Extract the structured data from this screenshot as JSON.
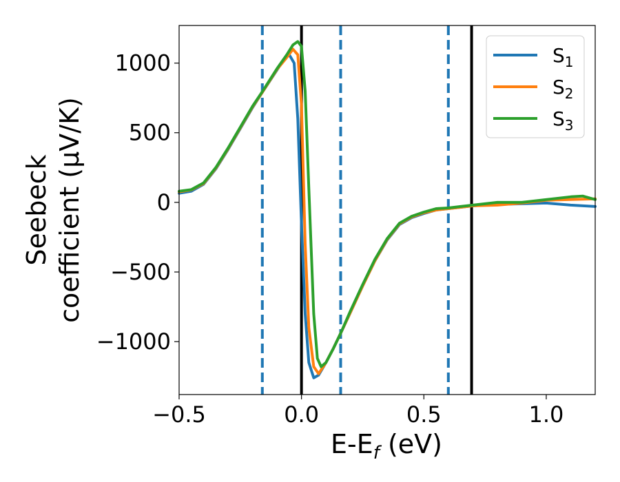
{
  "chart_data": {
    "type": "line",
    "xlabel": "E-E",
    "xlabel_sub": "f",
    "xlabel_unit": " (eV)",
    "ylabel_line1": "Seebeck",
    "ylabel_line2": "coefficient  (μV/K)",
    "xlim": [
      -0.5,
      1.2
    ],
    "ylim": [
      -1380,
      1270
    ],
    "x_ticks": [
      {
        "value": -0.5,
        "label": "−0.5"
      },
      {
        "value": 0.0,
        "label": "0.0"
      },
      {
        "value": 0.5,
        "label": "0.5"
      },
      {
        "value": 1.0,
        "label": "1.0"
      }
    ],
    "y_ticks": [
      {
        "value": 1000,
        "label": "1000"
      },
      {
        "value": 500,
        "label": "500"
      },
      {
        "value": 0,
        "label": "0"
      },
      {
        "value": -500,
        "label": "−500"
      },
      {
        "value": -1000,
        "label": "−1000"
      }
    ],
    "legend_position": "top-right",
    "vlines": [
      {
        "x": -0.16,
        "style": "dashed",
        "color": "#1f77b4"
      },
      {
        "x": 0.0,
        "style": "solid",
        "color": "#000000"
      },
      {
        "x": 0.16,
        "style": "dashed",
        "color": "#1f77b4"
      },
      {
        "x": 0.6,
        "style": "dashed",
        "color": "#1f77b4"
      },
      {
        "x": 0.695,
        "style": "solid",
        "color": "#000000"
      }
    ],
    "series": [
      {
        "name": "S",
        "sub": "1",
        "color": "#1f77b4",
        "points": [
          [
            -0.5,
            65
          ],
          [
            -0.45,
            80
          ],
          [
            -0.4,
            130
          ],
          [
            -0.35,
            240
          ],
          [
            -0.3,
            380
          ],
          [
            -0.25,
            530
          ],
          [
            -0.2,
            680
          ],
          [
            -0.16,
            790
          ],
          [
            -0.1,
            950
          ],
          [
            -0.07,
            1030
          ],
          [
            -0.05,
            1060
          ],
          [
            -0.03,
            1000
          ],
          [
            -0.015,
            600
          ],
          [
            0.0,
            -150
          ],
          [
            0.015,
            -800
          ],
          [
            0.03,
            -1150
          ],
          [
            0.05,
            -1260
          ],
          [
            0.07,
            -1240
          ],
          [
            0.1,
            -1150
          ],
          [
            0.13,
            -1050
          ],
          [
            0.16,
            -940
          ],
          [
            0.2,
            -790
          ],
          [
            0.25,
            -600
          ],
          [
            0.3,
            -420
          ],
          [
            0.35,
            -270
          ],
          [
            0.4,
            -160
          ],
          [
            0.45,
            -110
          ],
          [
            0.5,
            -80
          ],
          [
            0.55,
            -55
          ],
          [
            0.6,
            -45
          ],
          [
            0.65,
            -35
          ],
          [
            0.7,
            -25
          ],
          [
            0.8,
            -15
          ],
          [
            0.9,
            -10
          ],
          [
            1.0,
            -5
          ],
          [
            1.1,
            -20
          ],
          [
            1.2,
            -30
          ]
        ]
      },
      {
        "name": "S",
        "sub": "2",
        "color": "#ff7f0e",
        "points": [
          [
            -0.5,
            75
          ],
          [
            -0.45,
            90
          ],
          [
            -0.4,
            135
          ],
          [
            -0.35,
            245
          ],
          [
            -0.3,
            385
          ],
          [
            -0.25,
            535
          ],
          [
            -0.2,
            685
          ],
          [
            -0.16,
            790
          ],
          [
            -0.1,
            955
          ],
          [
            -0.06,
            1040
          ],
          [
            -0.035,
            1100
          ],
          [
            -0.015,
            1060
          ],
          [
            0.0,
            700
          ],
          [
            0.015,
            -300
          ],
          [
            0.03,
            -900
          ],
          [
            0.05,
            -1180
          ],
          [
            0.07,
            -1230
          ],
          [
            0.1,
            -1150
          ],
          [
            0.13,
            -1050
          ],
          [
            0.16,
            -940
          ],
          [
            0.2,
            -790
          ],
          [
            0.25,
            -600
          ],
          [
            0.3,
            -420
          ],
          [
            0.35,
            -265
          ],
          [
            0.4,
            -155
          ],
          [
            0.45,
            -105
          ],
          [
            0.5,
            -75
          ],
          [
            0.55,
            -55
          ],
          [
            0.6,
            -45
          ],
          [
            0.65,
            -35
          ],
          [
            0.7,
            -25
          ],
          [
            0.8,
            -20
          ],
          [
            0.9,
            -5
          ],
          [
            1.0,
            15
          ],
          [
            1.1,
            20
          ],
          [
            1.2,
            25
          ]
        ]
      },
      {
        "name": "S",
        "sub": "3",
        "color": "#2ca02c",
        "points": [
          [
            -0.5,
            80
          ],
          [
            -0.45,
            92
          ],
          [
            -0.4,
            140
          ],
          [
            -0.35,
            250
          ],
          [
            -0.3,
            390
          ],
          [
            -0.25,
            540
          ],
          [
            -0.2,
            690
          ],
          [
            -0.16,
            795
          ],
          [
            -0.1,
            960
          ],
          [
            -0.06,
            1060
          ],
          [
            -0.035,
            1130
          ],
          [
            -0.015,
            1155
          ],
          [
            0.0,
            1120
          ],
          [
            0.015,
            800
          ],
          [
            0.03,
            100
          ],
          [
            0.05,
            -800
          ],
          [
            0.065,
            -1120
          ],
          [
            0.08,
            -1180
          ],
          [
            0.1,
            -1150
          ],
          [
            0.13,
            -1050
          ],
          [
            0.16,
            -940
          ],
          [
            0.2,
            -780
          ],
          [
            0.25,
            -590
          ],
          [
            0.3,
            -410
          ],
          [
            0.35,
            -260
          ],
          [
            0.4,
            -150
          ],
          [
            0.45,
            -100
          ],
          [
            0.5,
            -70
          ],
          [
            0.55,
            -45
          ],
          [
            0.6,
            -40
          ],
          [
            0.65,
            -30
          ],
          [
            0.7,
            -20
          ],
          [
            0.8,
            0
          ],
          [
            0.9,
            0
          ],
          [
            1.0,
            20
          ],
          [
            1.1,
            40
          ],
          [
            1.15,
            45
          ],
          [
            1.2,
            20
          ]
        ]
      }
    ]
  }
}
